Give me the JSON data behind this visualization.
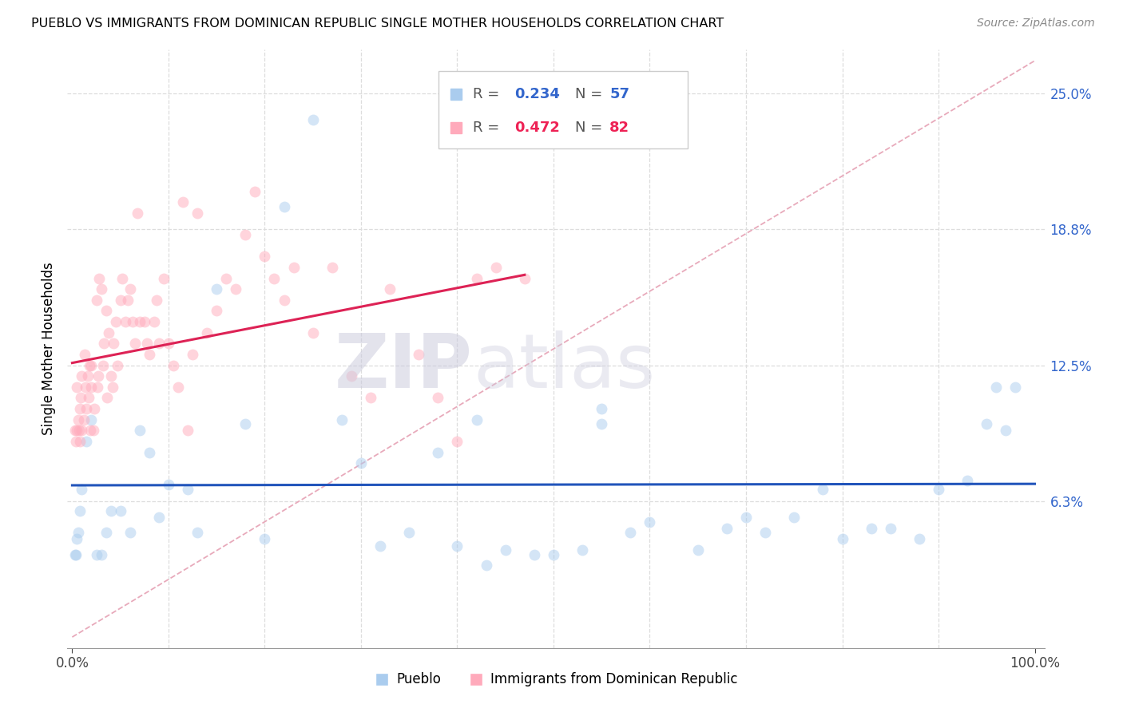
{
  "title": "PUEBLO VS IMMIGRANTS FROM DOMINICAN REPUBLIC SINGLE MOTHER HOUSEHOLDS CORRELATION CHART",
  "source": "Source: ZipAtlas.com",
  "ylabel": "Single Mother Households",
  "legend_label1": "Pueblo",
  "legend_label2": "Immigrants from Dominican Republic",
  "r1": "0.234",
  "n1": "57",
  "r2": "0.472",
  "n2": "82",
  "color_blue": "#AACCEE",
  "color_pink": "#FFAABB",
  "color_blue_line": "#2255BB",
  "color_pink_line": "#DD2255",
  "color_blue_text": "#3366CC",
  "color_pink_text": "#EE2255",
  "ytick_vals": [
    0.0,
    0.0625,
    0.125,
    0.1875,
    0.25
  ],
  "ytick_labels": [
    "",
    "6.3%",
    "12.5%",
    "18.8%",
    "25.0%"
  ],
  "xlim": [
    0.0,
    1.0
  ],
  "ylim": [
    -0.005,
    0.27
  ],
  "watermark_zip": "ZIP",
  "watermark_atlas": "atlas",
  "grid_color": "#DDDDDD",
  "title_fontsize": 11.5,
  "source_fontsize": 10,
  "tick_fontsize": 12,
  "ylabel_fontsize": 12,
  "legend_fontsize": 13,
  "marker_size": 100,
  "marker_alpha": 0.5,
  "trend_linewidth": 2.2,
  "ref_line_color": "#E8AABB",
  "bg_color": "#FFFFFF",
  "pueblo_x": [
    0.98,
    0.96,
    0.97,
    0.95,
    0.93,
    0.9,
    0.88,
    0.85,
    0.83,
    0.8,
    0.78,
    0.75,
    0.72,
    0.7,
    0.68,
    0.65,
    0.6,
    0.58,
    0.55,
    0.53,
    0.5,
    0.48,
    0.45,
    0.43,
    0.4,
    0.38,
    0.35,
    0.32,
    0.3,
    0.28,
    0.25,
    0.22,
    0.2,
    0.18,
    0.15,
    0.13,
    0.12,
    0.1,
    0.09,
    0.08,
    0.07,
    0.06,
    0.05,
    0.04,
    0.035,
    0.03,
    0.025,
    0.02,
    0.015,
    0.01,
    0.008,
    0.006,
    0.005,
    0.004,
    0.003,
    0.55,
    0.42
  ],
  "pueblo_y": [
    0.115,
    0.115,
    0.095,
    0.098,
    0.072,
    0.068,
    0.045,
    0.05,
    0.05,
    0.045,
    0.068,
    0.055,
    0.048,
    0.055,
    0.05,
    0.04,
    0.053,
    0.048,
    0.105,
    0.04,
    0.038,
    0.038,
    0.04,
    0.033,
    0.042,
    0.085,
    0.048,
    0.042,
    0.08,
    0.1,
    0.238,
    0.198,
    0.045,
    0.098,
    0.16,
    0.048,
    0.068,
    0.07,
    0.055,
    0.085,
    0.095,
    0.048,
    0.058,
    0.058,
    0.048,
    0.038,
    0.038,
    0.1,
    0.09,
    0.068,
    0.058,
    0.048,
    0.045,
    0.038,
    0.038,
    0.098,
    0.1
  ],
  "dr_x": [
    0.003,
    0.004,
    0.005,
    0.005,
    0.006,
    0.007,
    0.008,
    0.008,
    0.009,
    0.01,
    0.01,
    0.012,
    0.013,
    0.014,
    0.015,
    0.016,
    0.017,
    0.018,
    0.019,
    0.02,
    0.02,
    0.022,
    0.023,
    0.025,
    0.026,
    0.027,
    0.028,
    0.03,
    0.032,
    0.033,
    0.035,
    0.036,
    0.038,
    0.04,
    0.042,
    0.043,
    0.045,
    0.047,
    0.05,
    0.052,
    0.055,
    0.058,
    0.06,
    0.063,
    0.065,
    0.068,
    0.07,
    0.075,
    0.078,
    0.08,
    0.085,
    0.088,
    0.09,
    0.095,
    0.1,
    0.105,
    0.11,
    0.115,
    0.12,
    0.125,
    0.13,
    0.14,
    0.15,
    0.16,
    0.17,
    0.18,
    0.19,
    0.2,
    0.21,
    0.22,
    0.23,
    0.25,
    0.27,
    0.29,
    0.31,
    0.33,
    0.36,
    0.38,
    0.4,
    0.42,
    0.44,
    0.47
  ],
  "dr_y": [
    0.095,
    0.09,
    0.095,
    0.115,
    0.1,
    0.095,
    0.105,
    0.09,
    0.11,
    0.095,
    0.12,
    0.1,
    0.13,
    0.115,
    0.105,
    0.12,
    0.11,
    0.125,
    0.095,
    0.115,
    0.125,
    0.095,
    0.105,
    0.155,
    0.115,
    0.12,
    0.165,
    0.16,
    0.125,
    0.135,
    0.15,
    0.11,
    0.14,
    0.12,
    0.115,
    0.135,
    0.145,
    0.125,
    0.155,
    0.165,
    0.145,
    0.155,
    0.16,
    0.145,
    0.135,
    0.195,
    0.145,
    0.145,
    0.135,
    0.13,
    0.145,
    0.155,
    0.135,
    0.165,
    0.135,
    0.125,
    0.115,
    0.2,
    0.095,
    0.13,
    0.195,
    0.14,
    0.15,
    0.165,
    0.16,
    0.185,
    0.205,
    0.175,
    0.165,
    0.155,
    0.17,
    0.14,
    0.17,
    0.12,
    0.11,
    0.16,
    0.13,
    0.11,
    0.09,
    0.165,
    0.17,
    0.165
  ]
}
